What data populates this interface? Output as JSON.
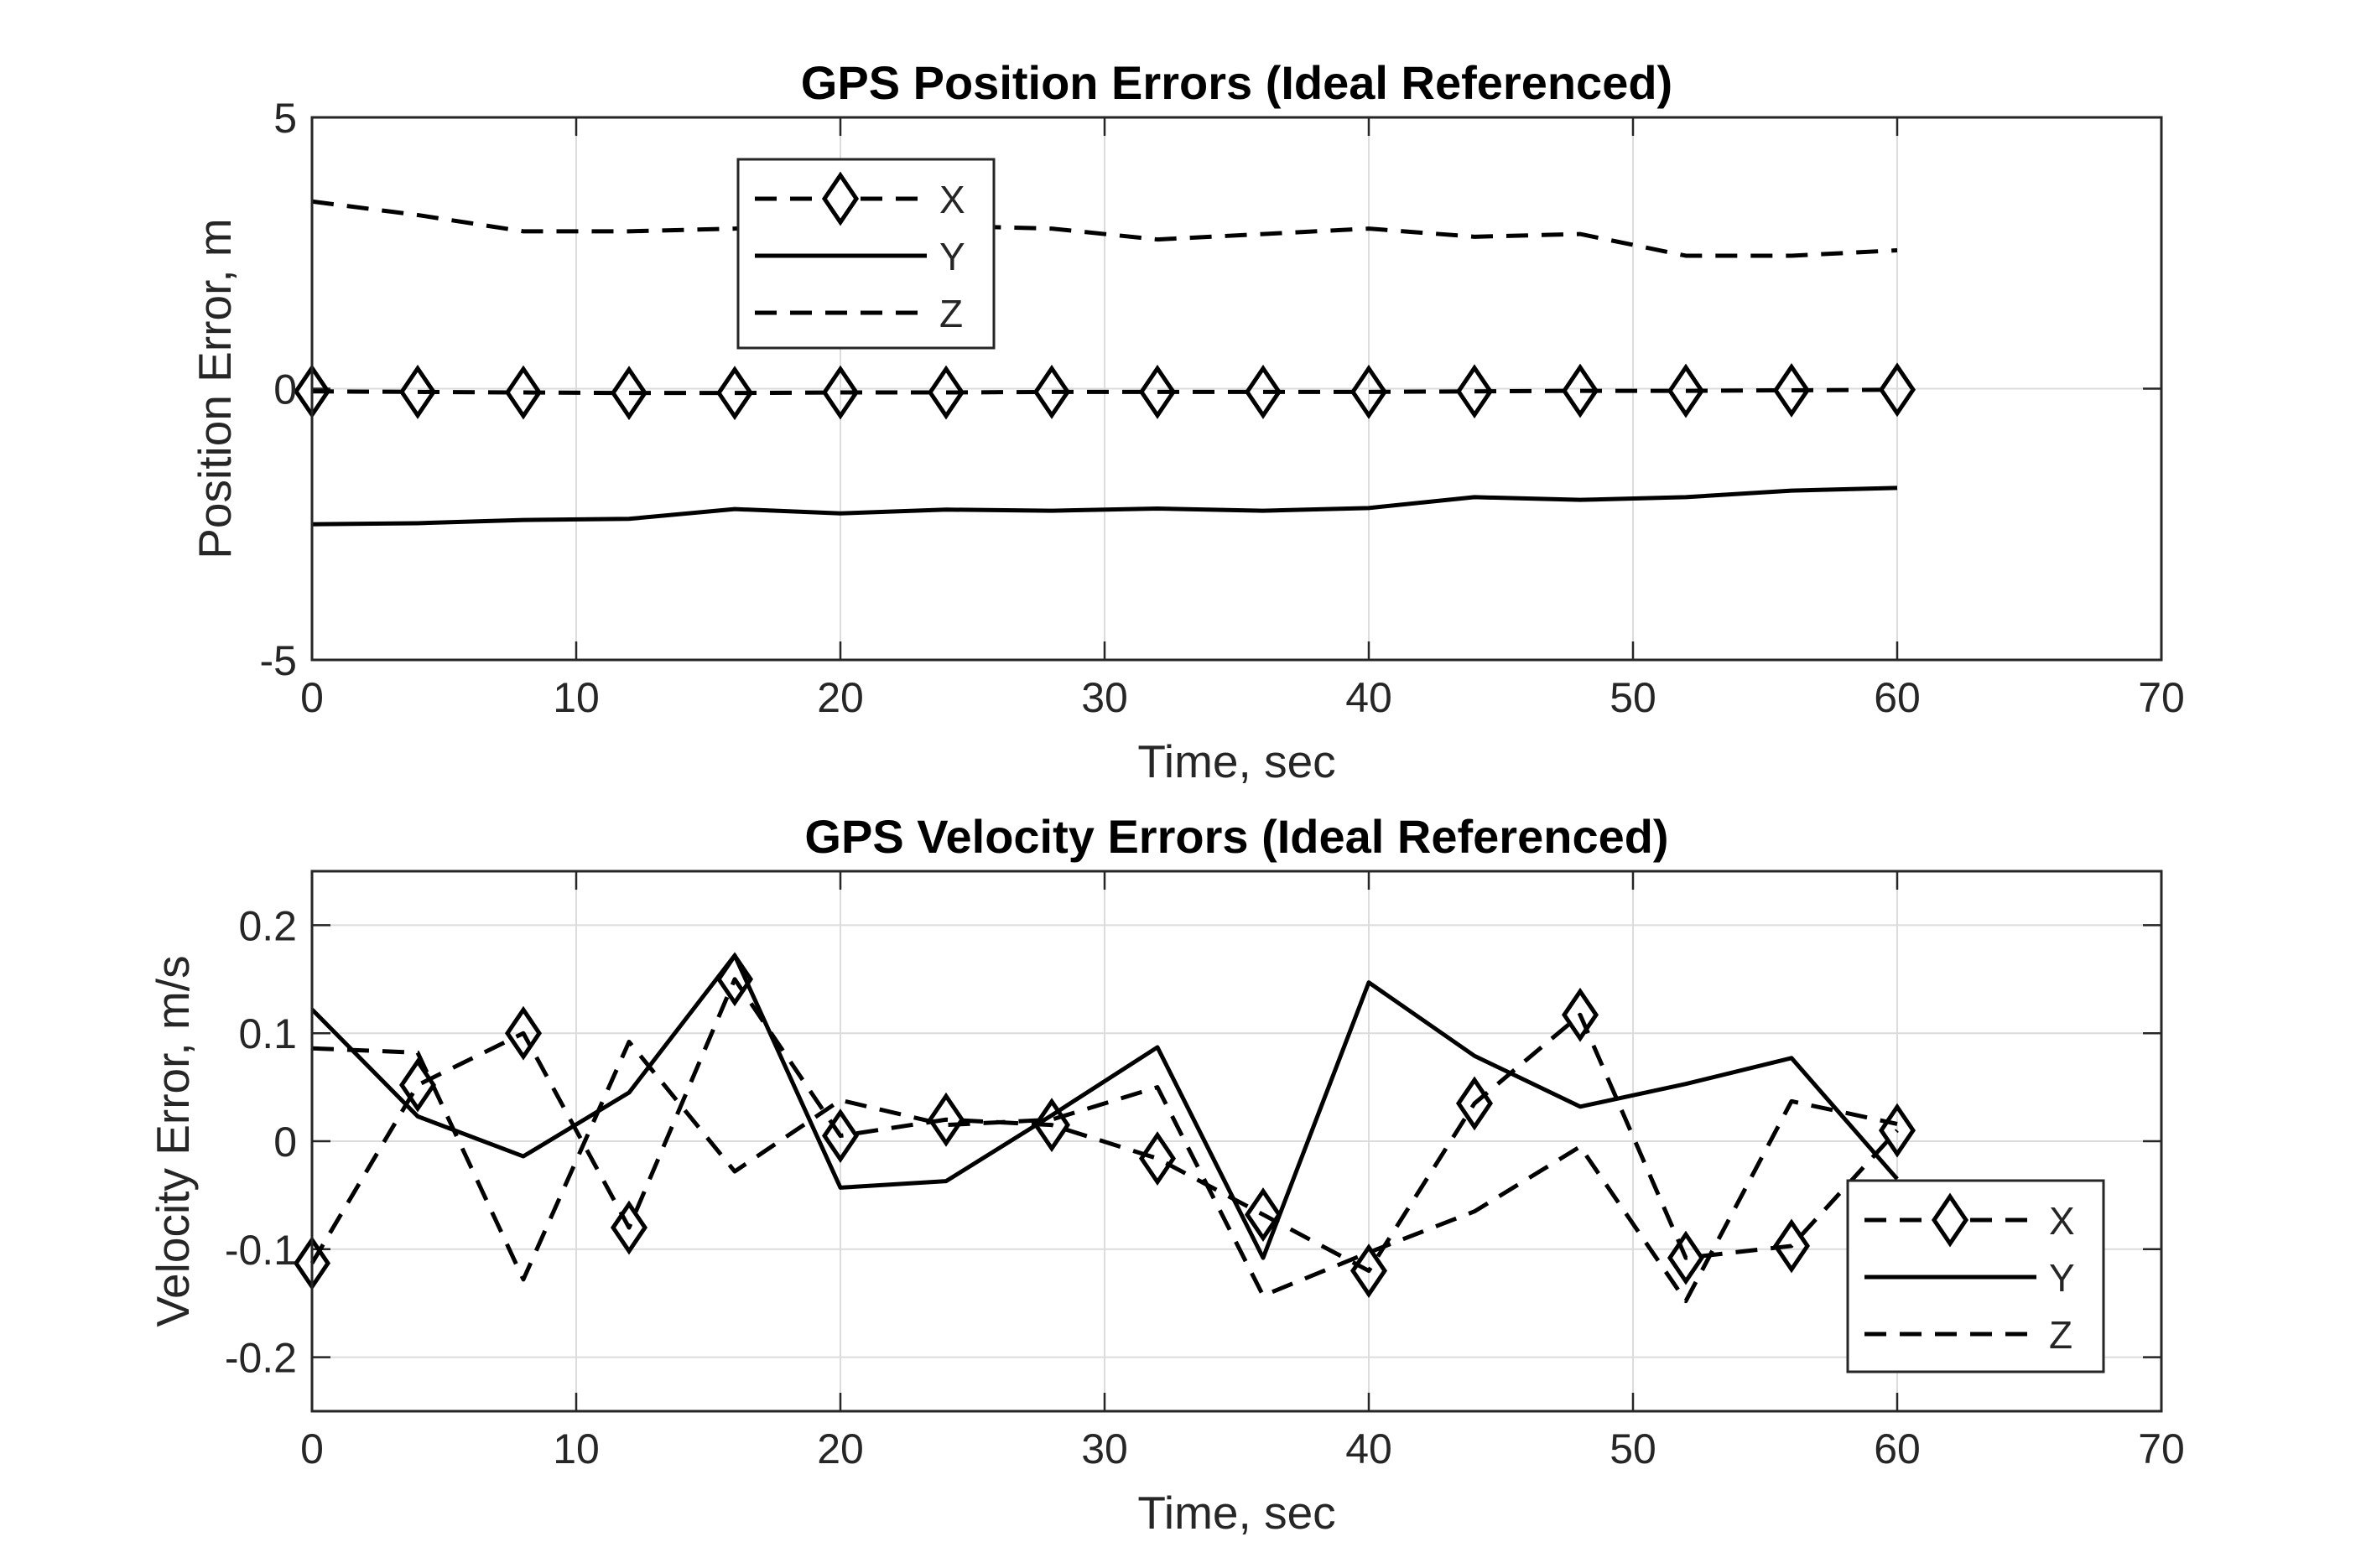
{
  "chart_data": [
    {
      "type": "line",
      "title": "GPS Position Errors (Ideal Referenced)",
      "xlabel": "Time, sec",
      "ylabel": "Position Error, m",
      "xlim": [
        0,
        70
      ],
      "ylim": [
        -5,
        5
      ],
      "xticks": [
        "0",
        "10",
        "20",
        "30",
        "40",
        "50",
        "60",
        "70"
      ],
      "yticks": [
        "-5",
        "0",
        "5"
      ],
      "grid": true,
      "legend_position": "top-center",
      "x": [
        0,
        4,
        8,
        12,
        16,
        20,
        24,
        28,
        32,
        36,
        40,
        44,
        48,
        52,
        56,
        60
      ],
      "series": [
        {
          "name": "X",
          "style": "dashed",
          "marker": "diamond",
          "values": [
            -0.05,
            -0.06,
            -0.07,
            -0.08,
            -0.08,
            -0.07,
            -0.07,
            -0.06,
            -0.06,
            -0.06,
            -0.06,
            -0.05,
            -0.04,
            -0.04,
            -0.03,
            -0.02
          ]
        },
        {
          "name": "Y",
          "style": "solid",
          "marker": "none",
          "values": [
            -2.5,
            -2.48,
            -2.42,
            -2.4,
            -2.22,
            -2.3,
            -2.23,
            -2.25,
            -2.21,
            -2.25,
            -2.2,
            -2.0,
            -2.05,
            -2.0,
            -1.88,
            -1.83
          ]
        },
        {
          "name": "Z",
          "style": "dashed",
          "marker": "none",
          "values": [
            3.45,
            3.2,
            2.9,
            2.9,
            2.95,
            3.0,
            3.0,
            2.95,
            2.75,
            2.85,
            2.95,
            2.8,
            2.85,
            2.45,
            2.45,
            2.55
          ]
        }
      ]
    },
    {
      "type": "line",
      "title": "GPS Velocity Errors (Ideal Referenced)",
      "xlabel": "Time, sec",
      "ylabel": "Velocity Error, m/s",
      "xlim": [
        0,
        70
      ],
      "ylim": [
        -0.25,
        0.25
      ],
      "xticks": [
        "0",
        "10",
        "20",
        "30",
        "40",
        "50",
        "60",
        "70"
      ],
      "yticks": [
        "-0.2",
        "-0.1",
        "0",
        "0.1",
        "0.2"
      ],
      "grid": true,
      "legend_position": "bottom-right",
      "x": [
        0,
        4,
        8,
        12,
        16,
        20,
        24,
        28,
        32,
        36,
        40,
        44,
        48,
        52,
        56,
        60
      ],
      "series": [
        {
          "name": "X",
          "style": "dashed",
          "marker": "diamond",
          "values": [
            -0.113,
            0.052,
            0.1,
            -0.08,
            0.15,
            0.005,
            0.02,
            0.015,
            -0.016,
            -0.068,
            -0.12,
            0.035,
            0.117,
            -0.108,
            -0.097,
            0.01
          ]
        },
        {
          "name": "Y",
          "style": "solid",
          "marker": "none",
          "values": [
            0.122,
            0.023,
            -0.014,
            0.045,
            0.172,
            -0.043,
            -0.037,
            0.024,
            0.087,
            -0.108,
            0.147,
            0.079,
            0.032,
            0.053,
            0.077,
            -0.035
          ]
        },
        {
          "name": "Z",
          "style": "dashed",
          "marker": "none",
          "values": [
            0.086,
            0.082,
            -0.128,
            0.092,
            -0.028,
            0.038,
            0.015,
            0.02,
            0.05,
            -0.143,
            -0.103,
            -0.065,
            -0.005,
            -0.148,
            0.037,
            0.016
          ]
        }
      ]
    }
  ]
}
